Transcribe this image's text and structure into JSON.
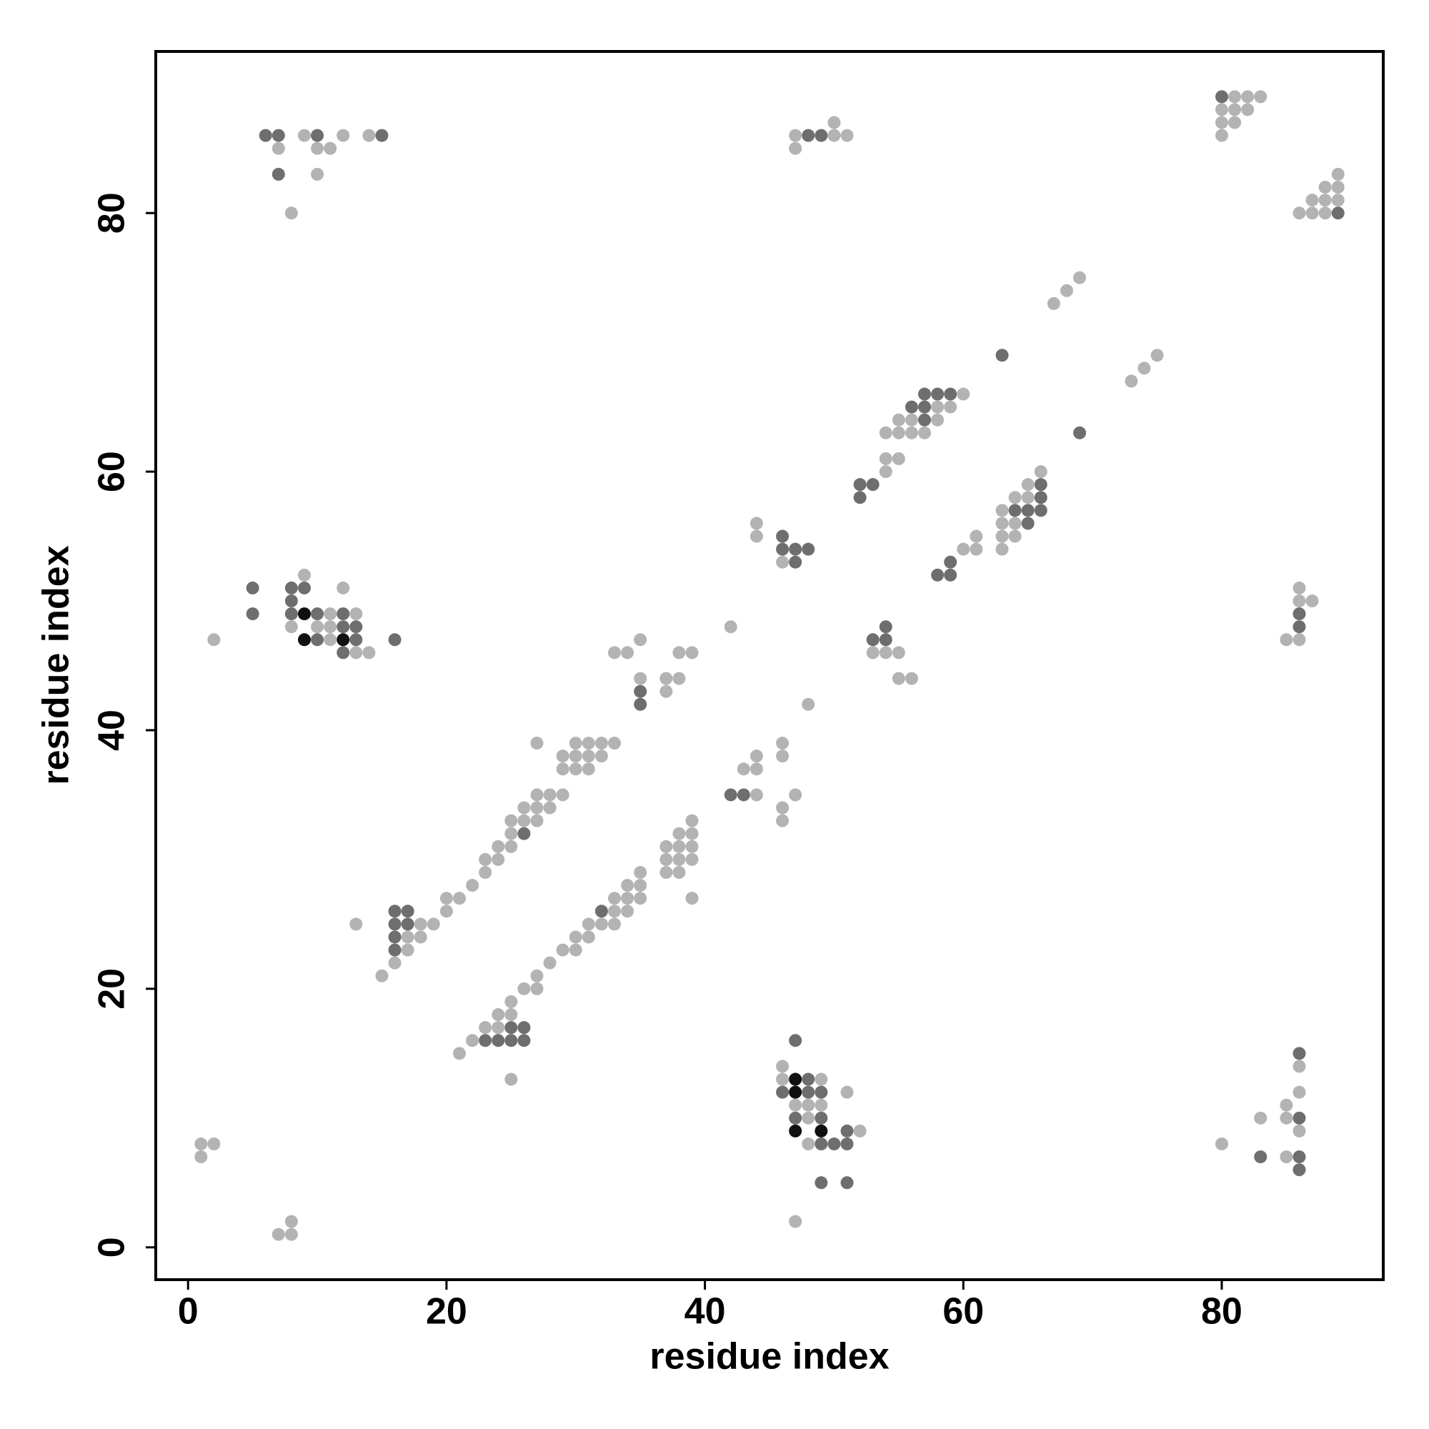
{
  "chart_data": {
    "type": "scatter",
    "xlabel": "residue index",
    "ylabel": "residue index",
    "xlim": [
      -2.5,
      92.5
    ],
    "ylim": [
      -2.5,
      92.5
    ],
    "xticks": [
      0,
      20,
      40,
      60,
      80
    ],
    "yticks": [
      0,
      20,
      40,
      60,
      80
    ],
    "grid": false,
    "series": [
      {
        "color": "#b3b3b3",
        "x": [
          9,
          12,
          14,
          7,
          10,
          11,
          10,
          8,
          47,
          50,
          51,
          50,
          47,
          81,
          82,
          83,
          80,
          81,
          82,
          80,
          81,
          80,
          89,
          88,
          89,
          87,
          88,
          89,
          86,
          87,
          88,
          69,
          68,
          67,
          75,
          74,
          73,
          60,
          58,
          59,
          55,
          56,
          58,
          54,
          55,
          56,
          57,
          54,
          55,
          54,
          66,
          65,
          64,
          65,
          63,
          44,
          63,
          64,
          44,
          61,
          63,
          64,
          60,
          61,
          63,
          46,
          9,
          12,
          11,
          13,
          8,
          10,
          11,
          42,
          2,
          11,
          35,
          13,
          14,
          33,
          34,
          38,
          39,
          53,
          54,
          55,
          35,
          37,
          38,
          55,
          56,
          37,
          48,
          86,
          86,
          87,
          85,
          86,
          27,
          30,
          31,
          32,
          33,
          46,
          29,
          30,
          31,
          32,
          44,
          46,
          29,
          30,
          31,
          43,
          44,
          27,
          28,
          29,
          44,
          47,
          26,
          27,
          28,
          46,
          25,
          26,
          27,
          39,
          46,
          25,
          38,
          39,
          24,
          25,
          37,
          38,
          39,
          23,
          24,
          37,
          38,
          39,
          23,
          35,
          37,
          38,
          22,
          34,
          35,
          20,
          21,
          33,
          34,
          35,
          39,
          20,
          33,
          34,
          13,
          18,
          19,
          31,
          32,
          33,
          17,
          18,
          30,
          31,
          17,
          29,
          30,
          16,
          28,
          15,
          27,
          26,
          27,
          25,
          24,
          25,
          23,
          24,
          22,
          21,
          86,
          46,
          25,
          46,
          49,
          51,
          86,
          47,
          48,
          49,
          85,
          48,
          83,
          85,
          52,
          86,
          1,
          2,
          48,
          80,
          1,
          85,
          8,
          47,
          7,
          8
        ],
        "y": [
          86,
          86,
          86,
          85,
          85,
          85,
          83,
          80,
          86,
          86,
          86,
          87,
          85,
          89,
          89,
          89,
          88,
          88,
          88,
          87,
          87,
          86,
          83,
          82,
          82,
          81,
          81,
          81,
          80,
          80,
          80,
          75,
          74,
          73,
          69,
          68,
          67,
          66,
          65,
          65,
          64,
          64,
          64,
          63,
          63,
          63,
          63,
          61,
          61,
          60,
          60,
          59,
          58,
          58,
          57,
          56,
          56,
          56,
          55,
          55,
          55,
          55,
          54,
          54,
          54,
          53,
          52,
          51,
          49,
          49,
          48,
          48,
          48,
          48,
          47,
          47,
          47,
          46,
          46,
          46,
          46,
          46,
          46,
          46,
          46,
          46,
          44,
          44,
          44,
          44,
          44,
          43,
          42,
          51,
          50,
          50,
          47,
          47,
          39,
          39,
          39,
          39,
          39,
          39,
          38,
          38,
          38,
          38,
          38,
          38,
          37,
          37,
          37,
          37,
          37,
          35,
          35,
          35,
          35,
          35,
          34,
          34,
          34,
          34,
          33,
          33,
          33,
          33,
          33,
          32,
          32,
          32,
          31,
          31,
          31,
          31,
          31,
          30,
          30,
          30,
          30,
          30,
          29,
          29,
          29,
          29,
          28,
          28,
          28,
          27,
          27,
          27,
          27,
          27,
          27,
          26,
          26,
          26,
          25,
          25,
          25,
          25,
          25,
          25,
          24,
          24,
          24,
          24,
          23,
          23,
          23,
          22,
          22,
          21,
          21,
          20,
          20,
          19,
          18,
          18,
          17,
          17,
          16,
          15,
          14,
          14,
          13,
          13,
          13,
          12,
          12,
          11,
          11,
          11,
          11,
          10,
          10,
          10,
          9,
          9,
          8,
          8,
          8,
          8,
          7,
          7,
          2,
          2,
          1,
          1
        ]
      },
      {
        "color": "#6e6e6e",
        "x": [
          6,
          7,
          10,
          15,
          7,
          48,
          49,
          80,
          89,
          63,
          57,
          58,
          59,
          56,
          57,
          57,
          69,
          52,
          53,
          66,
          52,
          66,
          64,
          65,
          66,
          65,
          46,
          46,
          47,
          48,
          47,
          59,
          58,
          59,
          5,
          8,
          9,
          8,
          5,
          8,
          10,
          12,
          12,
          13,
          54,
          10,
          13,
          16,
          53,
          54,
          12,
          35,
          35,
          86,
          86,
          42,
          43,
          26,
          16,
          17,
          32,
          16,
          17,
          16,
          16,
          25,
          26,
          23,
          24,
          25,
          26,
          47,
          86,
          48,
          46,
          48,
          49,
          47,
          49,
          86,
          51,
          49,
          50,
          51,
          83,
          86,
          86,
          49,
          51
        ],
        "y": [
          86,
          86,
          86,
          86,
          83,
          86,
          86,
          89,
          80,
          69,
          66,
          66,
          66,
          65,
          65,
          64,
          63,
          59,
          59,
          59,
          58,
          58,
          57,
          57,
          57,
          56,
          55,
          54,
          54,
          54,
          53,
          53,
          52,
          52,
          51,
          51,
          51,
          50,
          49,
          49,
          49,
          49,
          48,
          48,
          48,
          47,
          47,
          47,
          47,
          47,
          46,
          43,
          42,
          49,
          48,
          35,
          35,
          32,
          26,
          26,
          26,
          25,
          25,
          24,
          23,
          17,
          17,
          16,
          16,
          16,
          16,
          16,
          15,
          13,
          12,
          12,
          12,
          10,
          10,
          10,
          9,
          8,
          8,
          8,
          7,
          7,
          6,
          5,
          5
        ]
      },
      {
        "color": "#111111",
        "x": [
          9,
          9,
          12,
          47,
          47,
          47,
          49
        ],
        "y": [
          49,
          47,
          47,
          13,
          12,
          9,
          9
        ]
      }
    ]
  }
}
